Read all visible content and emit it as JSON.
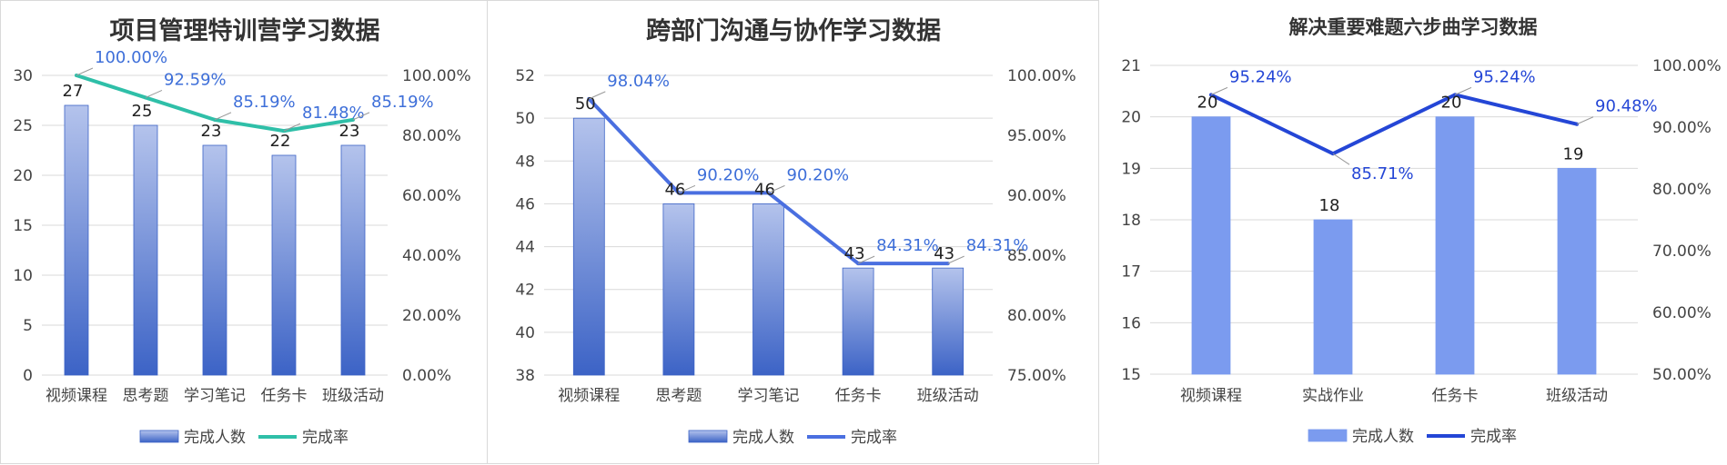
{
  "chart_data": [
    {
      "type": "bar",
      "title": "项目管理特训营学习数据",
      "categories": [
        "视频课程",
        "思考题",
        "学习笔记",
        "任务卡",
        "班级活动"
      ],
      "series": [
        {
          "name": "完成人数",
          "type": "bar",
          "axis": "left",
          "values": [
            27,
            25,
            23,
            22,
            23
          ]
        },
        {
          "name": "完成率",
          "type": "line",
          "axis": "right",
          "values": [
            1.0,
            0.9259,
            0.8519,
            0.8148,
            0.8519
          ]
        }
      ],
      "ylim": [
        0,
        30
      ],
      "yticks": [
        "0",
        "5",
        "10",
        "15",
        "20",
        "25",
        "30"
      ],
      "y2lim": [
        0,
        1
      ],
      "y2ticks": [
        "0.00%",
        "20.00%",
        "40.00%",
        "60.00%",
        "80.00%",
        "100.00%"
      ],
      "bar_labels": [
        "27",
        "25",
        "23",
        "22",
        "23"
      ],
      "line_labels": [
        "100.00%",
        "92.59%",
        "85.19%",
        "81.48%",
        "85.19%"
      ],
      "legend": [
        "完成人数",
        "完成率"
      ],
      "legend_position": "bottom",
      "grid": true,
      "colors": {
        "bar_top": "#b4c3ec",
        "bar_bottom": "#3c63c6",
        "line": "#2fbfa8",
        "line_label": "#3e6fd9"
      }
    },
    {
      "type": "bar",
      "title": "跨部门沟通与协作学习数据",
      "categories": [
        "视频课程",
        "思考题",
        "学习笔记",
        "任务卡",
        "班级活动"
      ],
      "series": [
        {
          "name": "完成人数",
          "type": "bar",
          "axis": "left",
          "values": [
            50,
            46,
            46,
            43,
            43
          ]
        },
        {
          "name": "完成率",
          "type": "line",
          "axis": "right",
          "values": [
            0.9804,
            0.902,
            0.902,
            0.8431,
            0.8431
          ]
        }
      ],
      "ylim": [
        38,
        52
      ],
      "yticks": [
        "38",
        "40",
        "42",
        "44",
        "46",
        "48",
        "50",
        "52"
      ],
      "y2lim": [
        0.75,
        1
      ],
      "y2ticks": [
        "75.00%",
        "80.00%",
        "85.00%",
        "90.00%",
        "95.00%",
        "100.00%"
      ],
      "bar_labels": [
        "50",
        "46",
        "46",
        "43",
        "43"
      ],
      "line_labels": [
        "98.04%",
        "90.20%",
        "90.20%",
        "84.31%",
        "84.31%"
      ],
      "legend": [
        "完成人数",
        "完成率"
      ],
      "legend_position": "bottom",
      "grid": true,
      "colors": {
        "bar_top": "#b4c3ec",
        "bar_bottom": "#3c63c6",
        "line": "#4a6fe0",
        "line_label": "#3e6fd9"
      }
    },
    {
      "type": "bar",
      "title": "解决重要难题六步曲学习数据",
      "categories": [
        "视频课程",
        "实战作业",
        "任务卡",
        "班级活动"
      ],
      "series": [
        {
          "name": "完成人数",
          "type": "bar",
          "axis": "left",
          "values": [
            20,
            18,
            20,
            19
          ]
        },
        {
          "name": "完成率",
          "type": "line",
          "axis": "right",
          "values": [
            0.9524,
            0.8571,
            0.9524,
            0.9048
          ]
        }
      ],
      "ylim": [
        15,
        21
      ],
      "yticks": [
        "15",
        "16",
        "17",
        "18",
        "19",
        "20",
        "21"
      ],
      "y2lim": [
        0.5,
        1
      ],
      "y2ticks": [
        "50.00%",
        "60.00%",
        "70.00%",
        "80.00%",
        "90.00%",
        "100.00%"
      ],
      "bar_labels": [
        "20",
        "18",
        "20",
        "19"
      ],
      "line_labels": [
        "95.24%",
        "85.71%",
        "95.24%",
        "90.48%"
      ],
      "legend": [
        "完成人数",
        "完成率"
      ],
      "legend_position": "bottom",
      "grid": true,
      "colors": {
        "bar_top": "#7b9bef",
        "bar_bottom": "#7b9bef",
        "line": "#2446d6",
        "line_label": "#2446d6"
      }
    }
  ]
}
